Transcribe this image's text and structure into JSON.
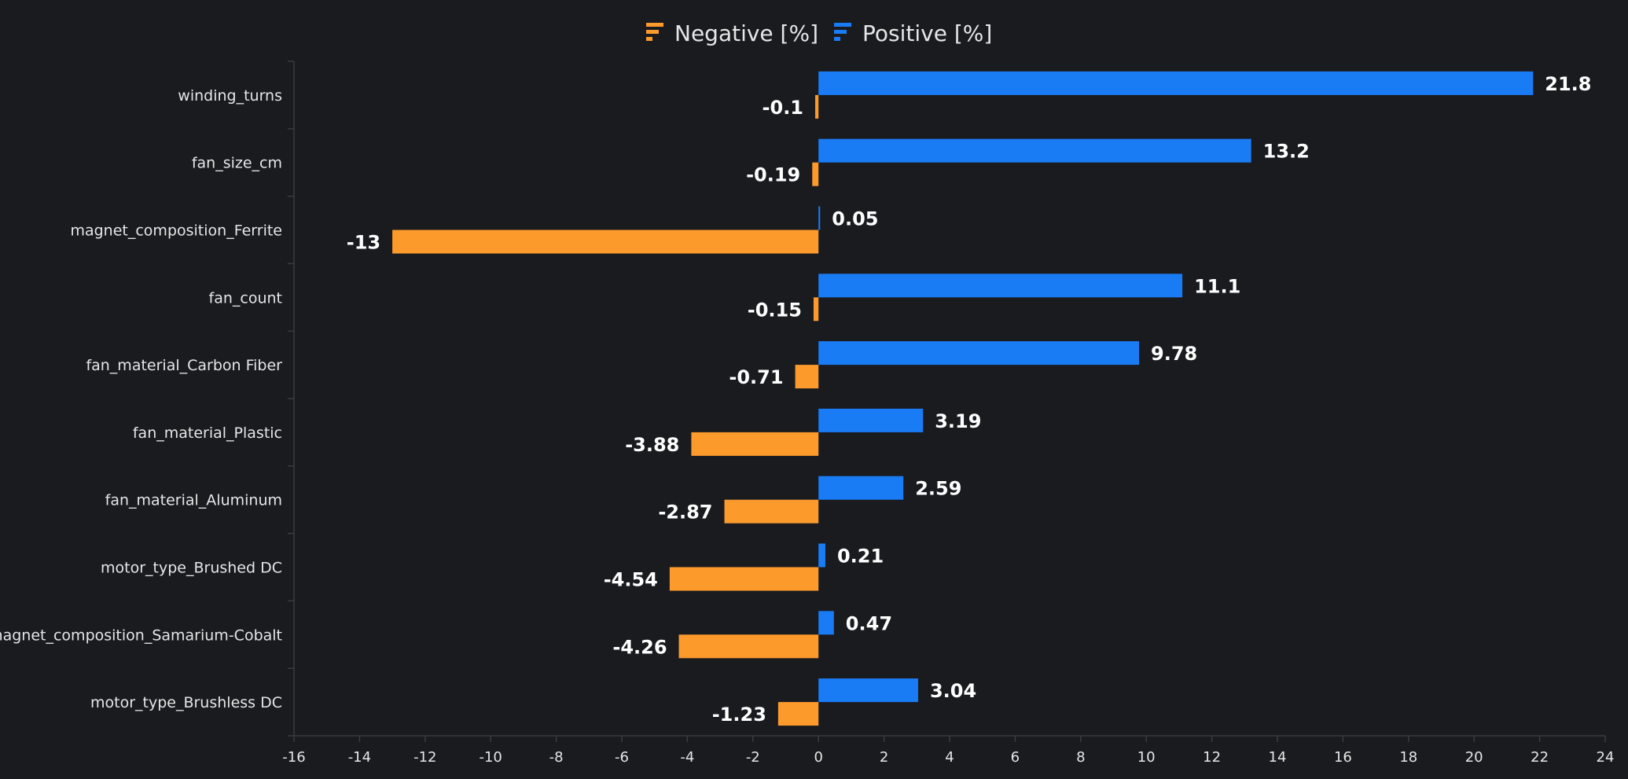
{
  "chart_data": {
    "type": "bar",
    "orientation": "horizontal",
    "categories": [
      "winding_turns",
      "fan_size_cm",
      "magnet_composition_Ferrite",
      "fan_count",
      "fan_material_Carbon Fiber",
      "fan_material_Plastic",
      "fan_material_Aluminum",
      "motor_type_Brushed DC",
      "magnet_composition_Samarium-Cobalt",
      "motor_type_Brushless DC"
    ],
    "series": [
      {
        "name": "Positive [%]",
        "color": "#1a7cf5",
        "values": [
          21.8,
          13.2,
          0.05,
          11.1,
          9.78,
          3.19,
          2.59,
          0.21,
          0.47,
          3.04
        ],
        "labels": [
          "21.8",
          "13.2",
          "0.05",
          "11.1",
          "9.78",
          "3.19",
          "2.59",
          "0.21",
          "0.47",
          "3.04"
        ]
      },
      {
        "name": "Negative [%]",
        "color": "#fd9a2c",
        "values": [
          -0.1,
          -0.19,
          -13,
          -0.15,
          -0.71,
          -3.88,
          -2.87,
          -4.54,
          -4.26,
          -1.23
        ],
        "labels": [
          "-0.1",
          "-0.19",
          "-13",
          "-0.15",
          "-0.71",
          "-3.88",
          "-2.87",
          "-4.54",
          "-4.26",
          "-1.23"
        ]
      }
    ],
    "legend": {
      "position": "top-center",
      "order": [
        "Negative [%]",
        "Positive [%]"
      ]
    },
    "xlim": [
      -16,
      24
    ],
    "xticks": [
      -16,
      -14,
      -12,
      -10,
      -8,
      -6,
      -4,
      -2,
      0,
      2,
      4,
      6,
      8,
      10,
      12,
      14,
      16,
      18,
      20,
      22,
      24
    ],
    "title": "",
    "xlabel": "",
    "ylabel": "",
    "grid": false,
    "colors": {
      "background": "#1a1b1f",
      "axis": "#3a3b40",
      "text": "#e6e6e6"
    }
  }
}
